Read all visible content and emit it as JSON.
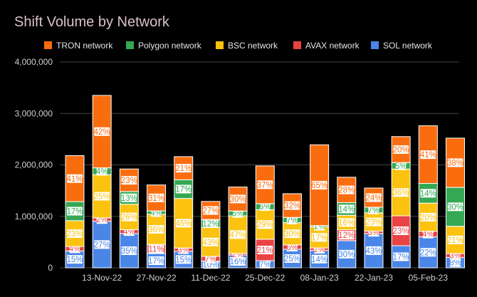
{
  "chart_data": {
    "type": "bar",
    "stacked": true,
    "title": "Shift Volume by Network",
    "xlabel": "",
    "ylabel": "",
    "ylim": [
      0,
      4000000
    ],
    "yticks": [
      {
        "value": 0,
        "label": "0"
      },
      {
        "value": 1000000,
        "label": "1,000,000"
      },
      {
        "value": 2000000,
        "label": "2,000,000"
      },
      {
        "value": 3000000,
        "label": "3,000,000"
      },
      {
        "value": 4000000,
        "label": "4,000,000"
      }
    ],
    "grid": true,
    "legend_position": "top",
    "x_tick_labels": [
      {
        "index": 1,
        "label": "13-Nov-22"
      },
      {
        "index": 3,
        "label": "27-Nov-22"
      },
      {
        "index": 5,
        "label": "11-Dec-22"
      },
      {
        "index": 7,
        "label": "25-Dec-22"
      },
      {
        "index": 9,
        "label": "08-Jan-23"
      },
      {
        "index": 11,
        "label": "22-Jan-23"
      },
      {
        "index": 13,
        "label": "05-Feb-23"
      }
    ],
    "totals": [
      2180000,
      3350000,
      1920000,
      1610000,
      2160000,
      1290000,
      1570000,
      1980000,
      1440000,
      2390000,
      1760000,
      1550000,
      2550000,
      2760000,
      2520000
    ],
    "series": [
      {
        "name": "SOL network",
        "color": "#4a86e8",
        "pct": [
          15,
          27,
          35,
          17,
          15,
          10,
          16,
          7,
          25,
          14,
          30,
          43,
          17,
          22,
          8
        ],
        "labels": [
          "15%",
          "27%",
          "35%",
          "17%",
          "15%",
          "10%",
          "16%",
          "7%",
          "25%",
          "14%",
          "30%",
          "43%",
          "17%",
          "22%",
          "8%"
        ]
      },
      {
        "name": "AVAX network",
        "color": "#e94343",
        "pct": [
          4,
          2,
          4,
          11,
          3,
          7,
          2,
          21,
          6,
          2,
          12,
          3,
          23,
          4,
          3
        ],
        "labels": [
          "4%",
          "2%",
          "4%",
          "11%",
          "3%",
          "7%",
          "2%",
          "21%",
          "6%",
          "2%",
          "12%",
          "3%",
          "23%",
          "4%",
          "3%"
        ]
      },
      {
        "name": "BSC network",
        "color": "#fbc20f",
        "pct": [
          23,
          25,
          26,
          36,
          45,
          43,
          47,
          29,
          30,
          17,
          16,
          23,
          36,
          20,
          21
        ],
        "labels": [
          "23%",
          "25%",
          "26%",
          "36%",
          "45%",
          "43%",
          "47%",
          "29%",
          "30%",
          "17%",
          "16%",
          "23%",
          "36%",
          "20%",
          "21%"
        ]
      },
      {
        "name": "Polygon network",
        "color": "#34a853",
        "pct": [
          17,
          4,
          13,
          4,
          17,
          12,
          6,
          6,
          7,
          1,
          14,
          7,
          5,
          14,
          30
        ],
        "labels": [
          "17%",
          "4%",
          "13%",
          "4%",
          "17%",
          "12%",
          "6%",
          "6%",
          "7%",
          "1%",
          "14%",
          "7%",
          "5%",
          "14%",
          "30%"
        ]
      },
      {
        "name": "TRON network",
        "color": "#fa6d0f",
        "pct": [
          41,
          42,
          23,
          31,
          21,
          27,
          30,
          37,
          32,
          65,
          28,
          24,
          20,
          41,
          38
        ],
        "labels": [
          "41%",
          "42%",
          "23%",
          "31%",
          "21%",
          "27%",
          "30%",
          "37%",
          "32%",
          "65%",
          "28%",
          "24%",
          "20%",
          "41%",
          "38%"
        ]
      }
    ],
    "legend_order": [
      "TRON network",
      "Polygon network",
      "BSC network",
      "AVAX network",
      "SOL network"
    ],
    "colors": {
      "background": "#000000",
      "grid": "#444444",
      "title": "#d9c2c7",
      "text": "#d0d0d0"
    }
  }
}
